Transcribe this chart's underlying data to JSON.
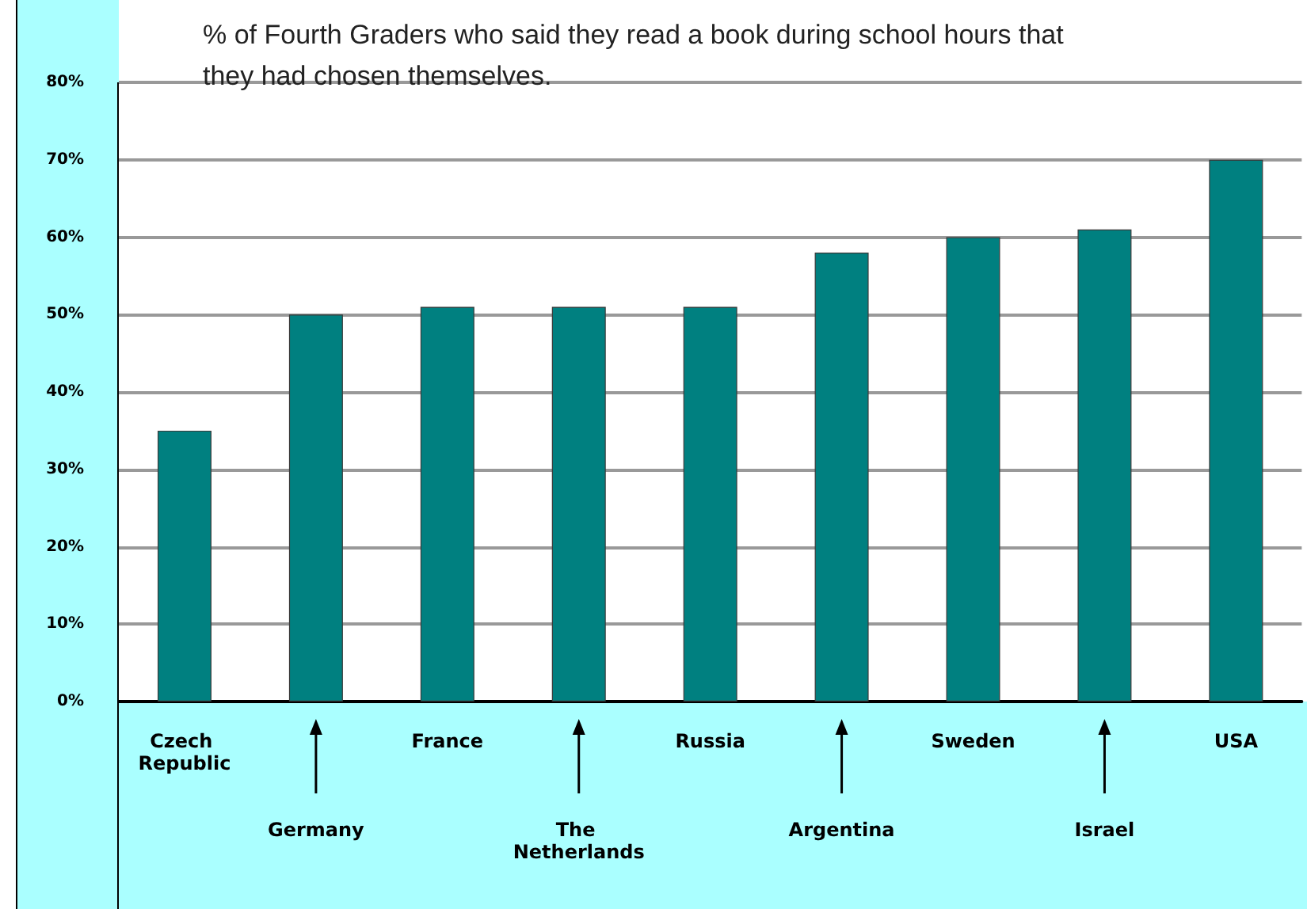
{
  "chart_data": {
    "type": "bar",
    "title": "% of Fourth Graders who said they read a book during school hours that they had chosen themselves.",
    "categories": [
      "Czech Republic",
      "Germany",
      "France",
      "The Netherlands",
      "Russia",
      "Argentina",
      "Sweden",
      "Israel",
      "USA"
    ],
    "values": [
      35,
      50,
      51,
      51,
      51,
      58,
      60,
      61,
      70
    ],
    "color": "#008080",
    "ylim": [
      0,
      80
    ],
    "yticks": [
      {
        "value": 0,
        "label": "0%"
      },
      {
        "value": 10,
        "label": "10%"
      },
      {
        "value": 20,
        "label": "20%"
      },
      {
        "value": 30,
        "label": "30%"
      },
      {
        "value": 40,
        "label": "40%"
      },
      {
        "value": 50,
        "label": "50%"
      },
      {
        "value": 60,
        "label": "60%"
      },
      {
        "value": 70,
        "label": "70%"
      },
      {
        "value": 80,
        "label": "80%"
      }
    ],
    "grid": "y"
  }
}
